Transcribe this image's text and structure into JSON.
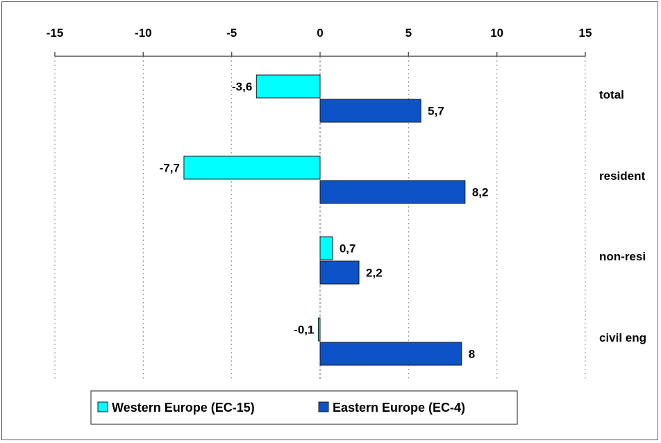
{
  "chart_data": {
    "type": "bar",
    "orientation": "horizontal",
    "categories": [
      "total",
      "resident",
      "non-resi",
      "civil eng"
    ],
    "series": [
      {
        "name": "Western Europe (EC-15)",
        "color": "#00ffff",
        "values": [
          -3.6,
          -7.7,
          0.7,
          -0.1
        ],
        "labels": [
          "-3,6",
          "-7,7",
          "0,7",
          "-0,1"
        ]
      },
      {
        "name": "Eastern Europe (EC-4)",
        "color": "#0e52c8",
        "values": [
          5.7,
          8.2,
          2.2,
          8
        ],
        "labels": [
          "5,7",
          "8,2",
          "2,2",
          "8"
        ]
      }
    ],
    "xlim": [
      -15,
      15
    ],
    "x_ticks": [
      -15,
      -10,
      -5,
      0,
      5,
      10,
      15
    ],
    "x_axis_position": "top",
    "grid": "vertical dashed",
    "legend_position": "bottom",
    "title": "",
    "xlabel": "",
    "ylabel": ""
  }
}
